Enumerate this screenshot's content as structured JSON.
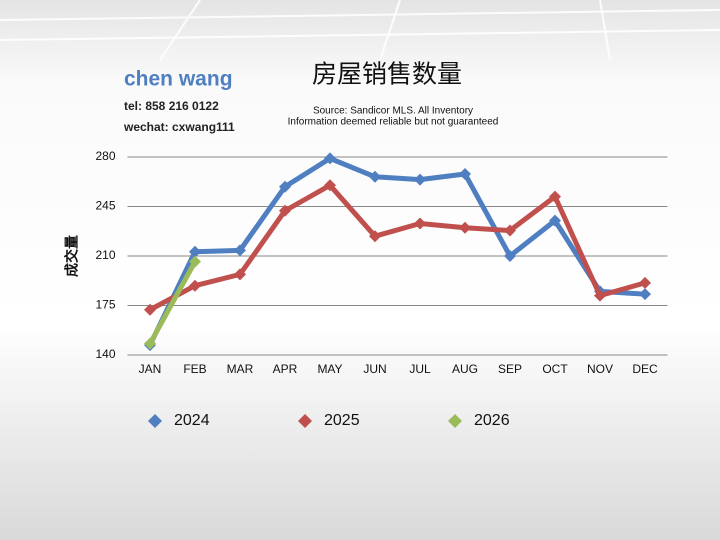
{
  "header": {
    "name": "chen wang",
    "tel": "tel: 858 216 0122",
    "wechat": "wechat: cxwang111"
  },
  "chart_data": {
    "type": "line",
    "title": "房屋销售数量",
    "annotations": [
      "Source: Sandicor MLS. All Inventory",
      "Information deemed reliable but not guaranteed"
    ],
    "y_label": "成交量",
    "categories": [
      "JAN",
      "FEB",
      "MAR",
      "APR",
      "MAY",
      "JUN",
      "JUL",
      "AUG",
      "SEP",
      "OCT",
      "NOV",
      "DEC"
    ],
    "series": [
      {
        "name": "2024",
        "color": "#4f7fc0",
        "values": [
          147,
          213,
          214,
          259,
          279,
          266,
          264,
          268,
          210,
          235,
          185,
          183
        ]
      },
      {
        "name": "2025",
        "color": "#c0504d",
        "values": [
          172,
          189,
          197,
          242,
          260,
          224,
          233,
          230,
          228,
          252,
          182,
          191
        ]
      },
      {
        "name": "2026",
        "color": "#9bbb59",
        "values": [
          148,
          206,
          null,
          null,
          null,
          null,
          null,
          null,
          null,
          null,
          null,
          null
        ]
      }
    ],
    "ylim": [
      140,
      280
    ],
    "yticks": [
      140,
      175,
      210,
      245,
      280
    ],
    "grid": true,
    "legend": "bottom"
  }
}
